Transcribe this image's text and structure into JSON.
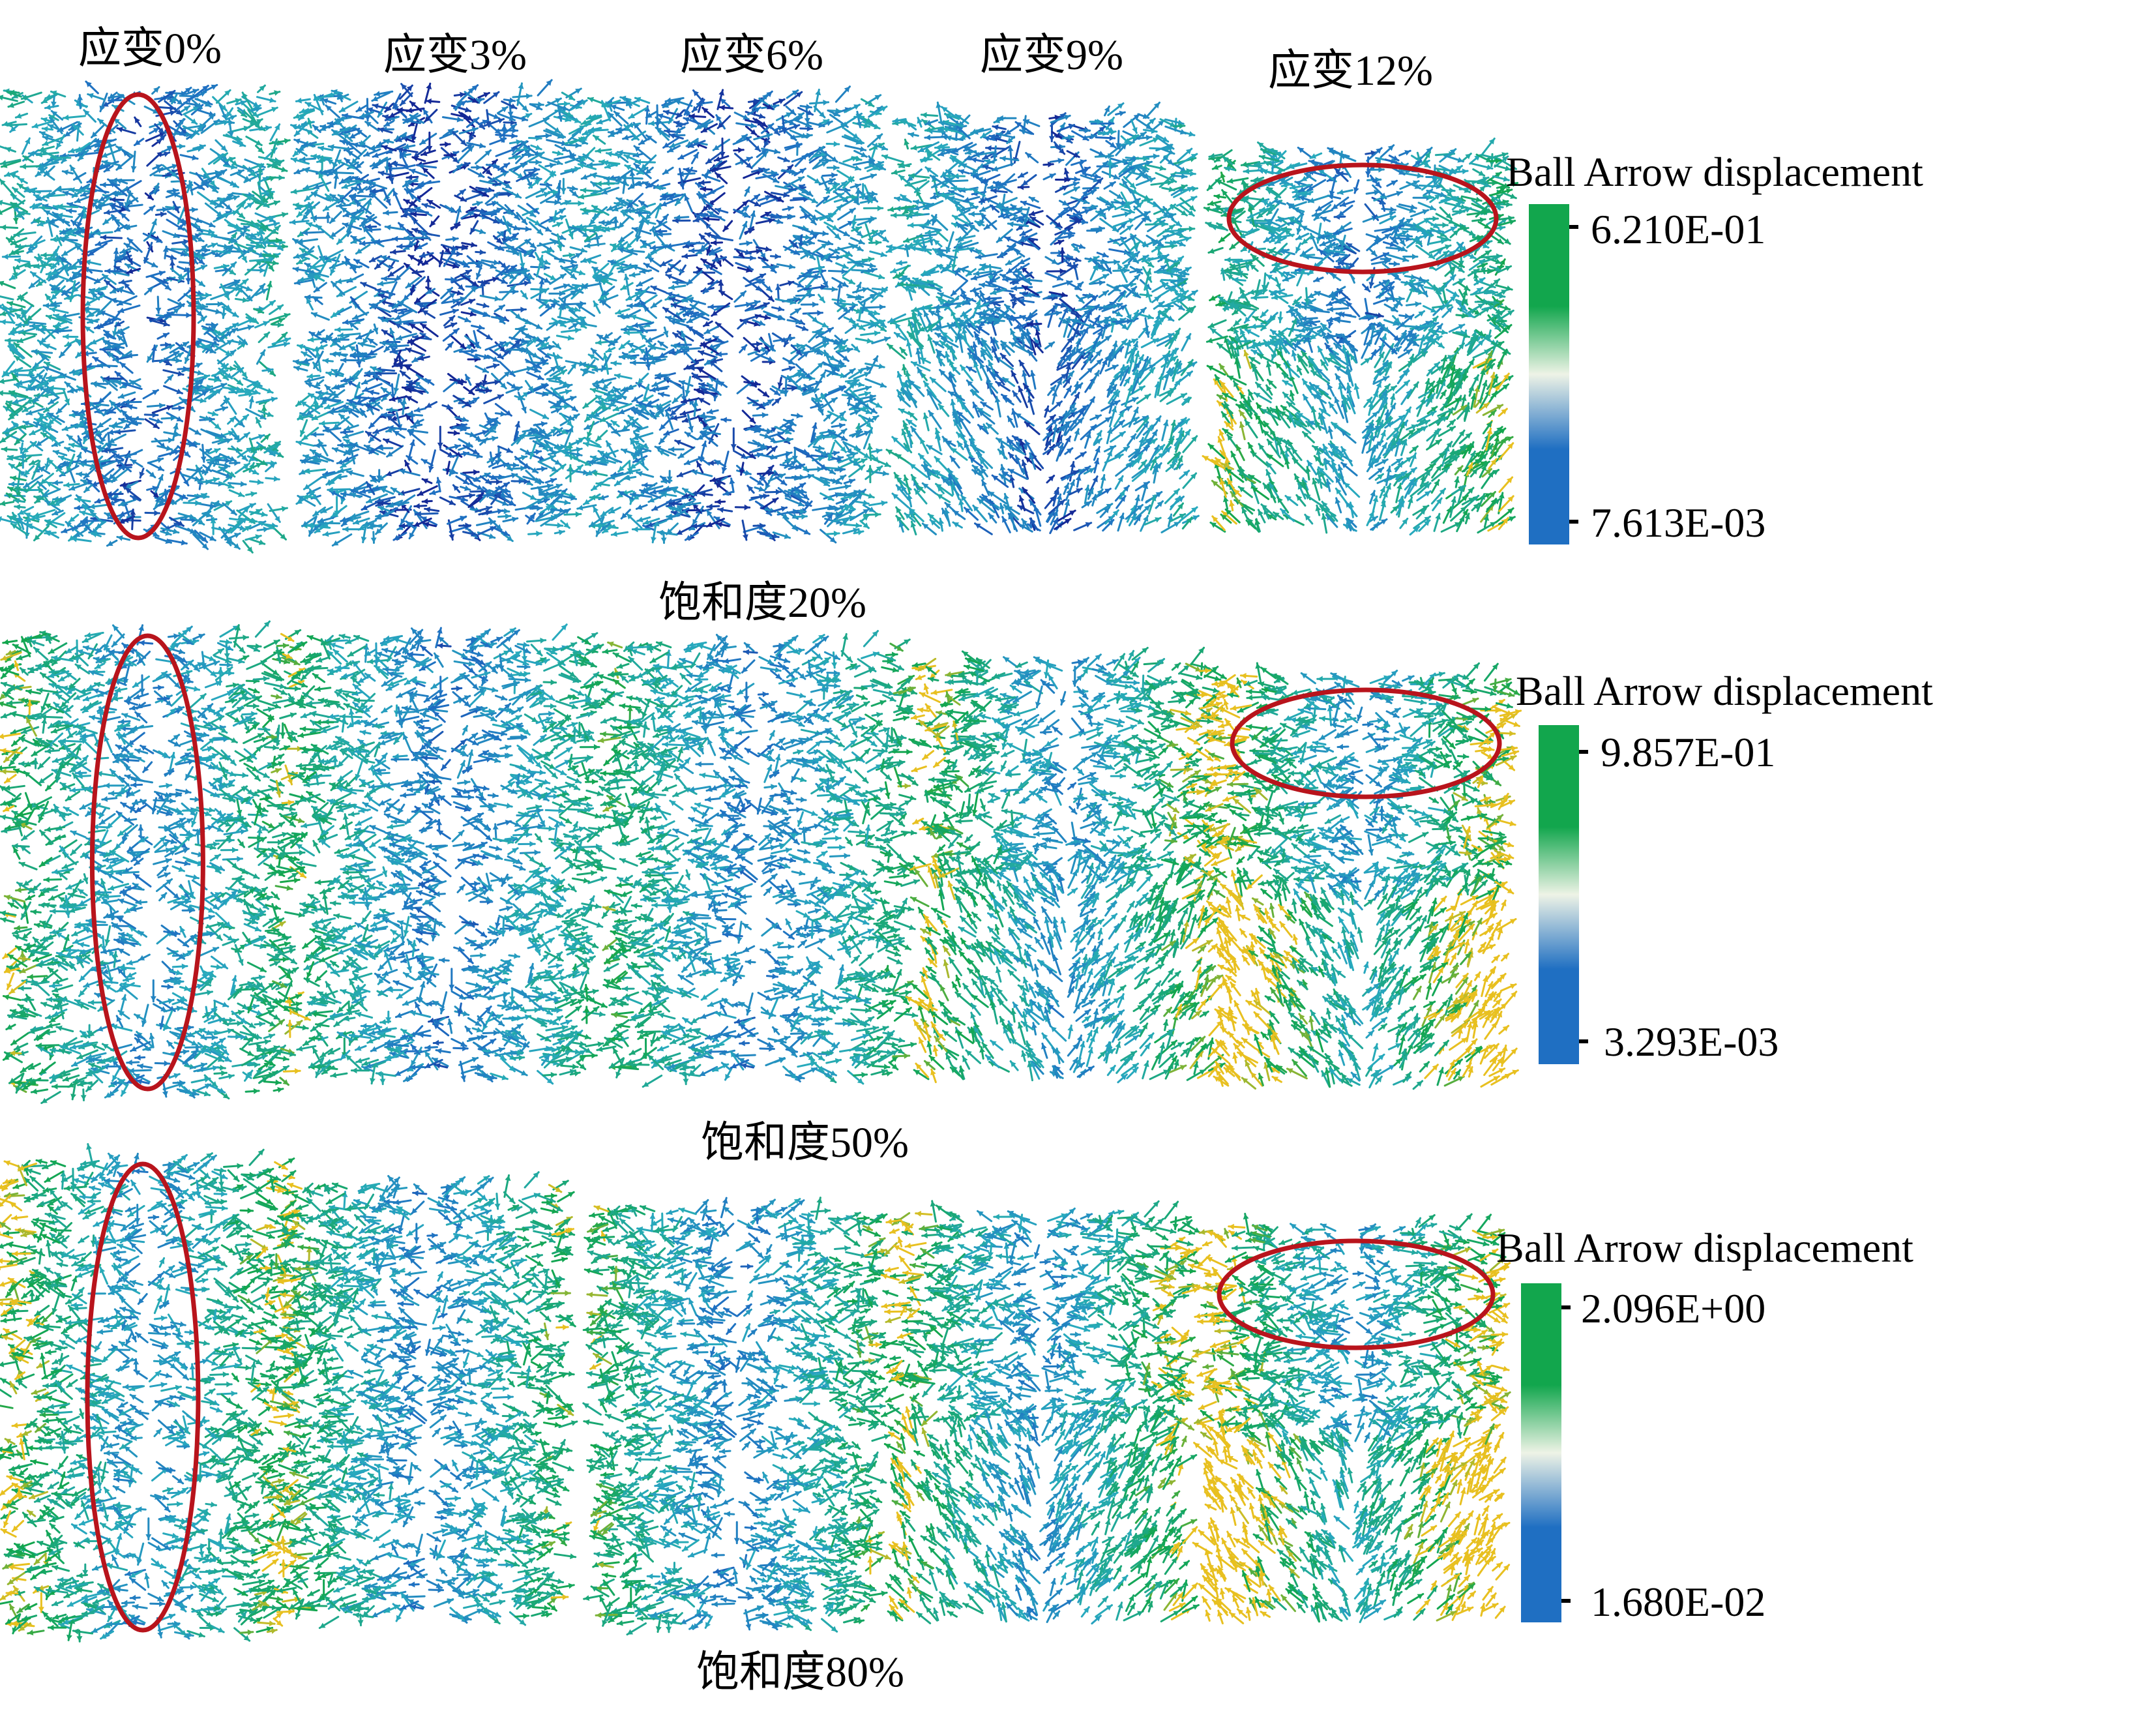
{
  "figure": {
    "strain_labels": [
      "应变0%",
      "应变3%",
      "应变6%",
      "应变9%",
      "应变12%"
    ],
    "palette": {
      "low": "#1f6fc2",
      "mid": "#eef3e6",
      "high": "#12a64d",
      "extreme": "#e8c020",
      "highlight_ring": "#b8141c"
    },
    "rows": [
      {
        "caption": "饱和度20%",
        "legend_title": "Ball Arrow displacement",
        "max_label": "6.210E-01",
        "min_label": "7.613E-03",
        "greenness": [
          0.35,
          0.18,
          0.22,
          0.3,
          0.55
        ],
        "highlight": [
          "vertical",
          "none",
          "none",
          "none",
          "horizontal-top"
        ]
      },
      {
        "caption": "饱和度50%",
        "legend_title": "Ball Arrow displacement",
        "max_label": "9.857E-01",
        "min_label": "3.293E-03",
        "greenness": [
          0.62,
          0.48,
          0.55,
          0.72,
          0.82
        ],
        "highlight": [
          "vertical",
          "none",
          "none",
          "none",
          "horizontal-top"
        ]
      },
      {
        "caption": "饱和度80%",
        "legend_title": "Ball Arrow displacement",
        "max_label": "2.096E+00",
        "min_label": "1.680E-02",
        "greenness": [
          0.72,
          0.6,
          0.58,
          0.7,
          0.85
        ],
        "highlight": [
          "vertical",
          "none",
          "none",
          "none",
          "horizontal-top"
        ]
      }
    ]
  }
}
